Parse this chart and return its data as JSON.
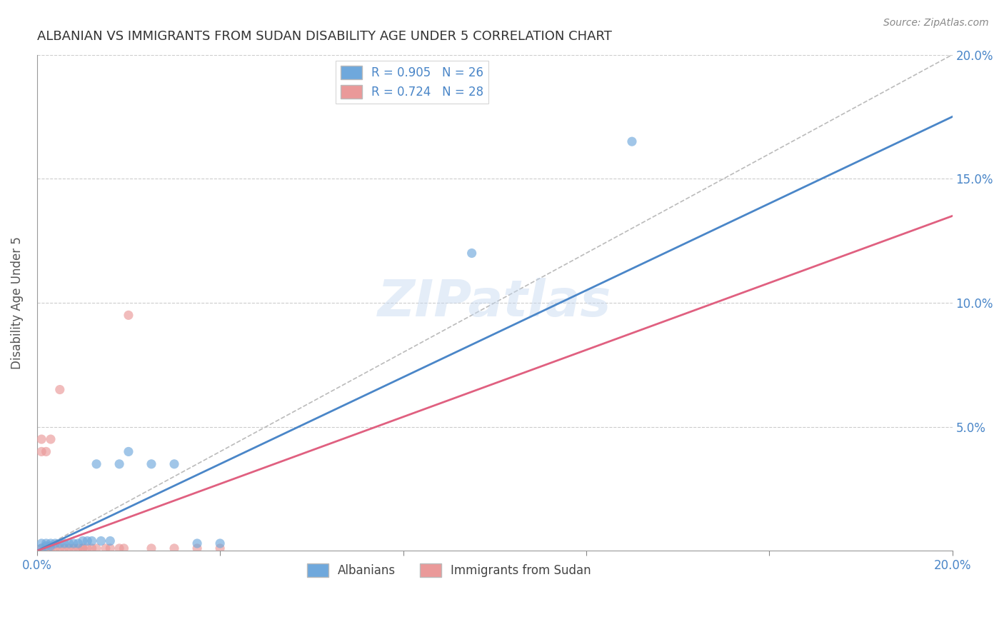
{
  "title": "ALBANIAN VS IMMIGRANTS FROM SUDAN DISABILITY AGE UNDER 5 CORRELATION CHART",
  "source": "Source: ZipAtlas.com",
  "ylabel": "Disability Age Under 5",
  "xlim": [
    0.0,
    0.2
  ],
  "ylim": [
    0.0,
    0.2
  ],
  "albanians_R": 0.905,
  "albanians_N": 26,
  "sudan_R": 0.724,
  "sudan_N": 28,
  "blue_color": "#6fa8dc",
  "pink_color": "#ea9999",
  "blue_line_color": "#4a86c8",
  "pink_line_color": "#e06080",
  "diag_line_color": "#bbbbbb",
  "watermark": "ZIPatlas",
  "albanians_x": [
    0.001,
    0.001,
    0.002,
    0.002,
    0.003,
    0.003,
    0.004,
    0.005,
    0.006,
    0.007,
    0.008,
    0.009,
    0.01,
    0.011,
    0.012,
    0.013,
    0.014,
    0.016,
    0.018,
    0.02,
    0.025,
    0.03,
    0.035,
    0.04,
    0.095,
    0.13
  ],
  "albanians_y": [
    0.001,
    0.003,
    0.002,
    0.003,
    0.002,
    0.003,
    0.003,
    0.003,
    0.003,
    0.003,
    0.003,
    0.003,
    0.004,
    0.004,
    0.004,
    0.035,
    0.004,
    0.004,
    0.035,
    0.04,
    0.035,
    0.035,
    0.003,
    0.003,
    0.12,
    0.165
  ],
  "sudan_x": [
    0.001,
    0.001,
    0.001,
    0.002,
    0.002,
    0.003,
    0.003,
    0.004,
    0.005,
    0.005,
    0.006,
    0.007,
    0.008,
    0.009,
    0.01,
    0.01,
    0.011,
    0.012,
    0.013,
    0.015,
    0.016,
    0.018,
    0.019,
    0.02,
    0.025,
    0.03,
    0.035,
    0.04
  ],
  "sudan_y": [
    0.001,
    0.04,
    0.045,
    0.001,
    0.04,
    0.045,
    0.001,
    0.001,
    0.001,
    0.065,
    0.001,
    0.001,
    0.001,
    0.001,
    0.001,
    0.001,
    0.001,
    0.001,
    0.001,
    0.001,
    0.001,
    0.001,
    0.001,
    0.095,
    0.001,
    0.001,
    0.001,
    0.001
  ]
}
